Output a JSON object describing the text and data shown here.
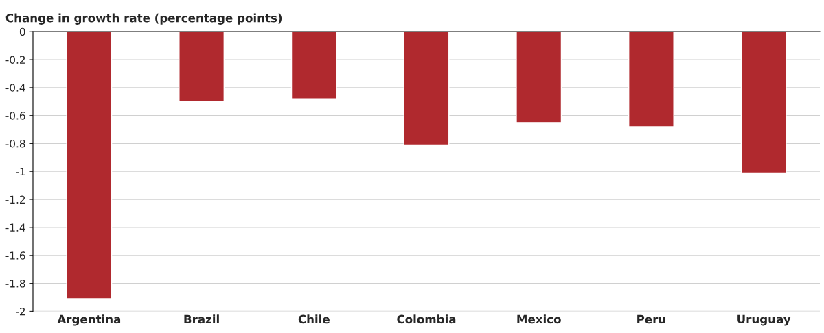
{
  "chart_data": {
    "type": "bar",
    "title": "Change in growth rate (percentage points)",
    "categories": [
      "Argentina",
      "Brazil",
      "Chile",
      "Colombia",
      "Mexico",
      "Peru",
      "Uruguay"
    ],
    "values": [
      -1.91,
      -0.5,
      -0.48,
      -0.81,
      -0.65,
      -0.68,
      -1.01
    ],
    "color": "#b0292e",
    "ylim": [
      -2,
      0
    ],
    "yticks": [
      0,
      {
        "value": -0.2,
        "label": "-0.2"
      },
      {
        "value": -0.4,
        "label": "-0.4"
      },
      {
        "value": -0.6,
        "label": "-0.6"
      },
      {
        "value": -0.8,
        "label": "-0.8"
      },
      {
        "value": -1,
        "label": "-1"
      },
      {
        "value": -1.2,
        "label": "-1.2"
      },
      {
        "value": -1.4,
        "label": "-1.4"
      },
      {
        "value": -1.6,
        "label": "-1.6"
      },
      {
        "value": -1.8,
        "label": "-1.8"
      },
      {
        "value": -2,
        "label": "-2"
      }
    ],
    "grid": "y"
  }
}
